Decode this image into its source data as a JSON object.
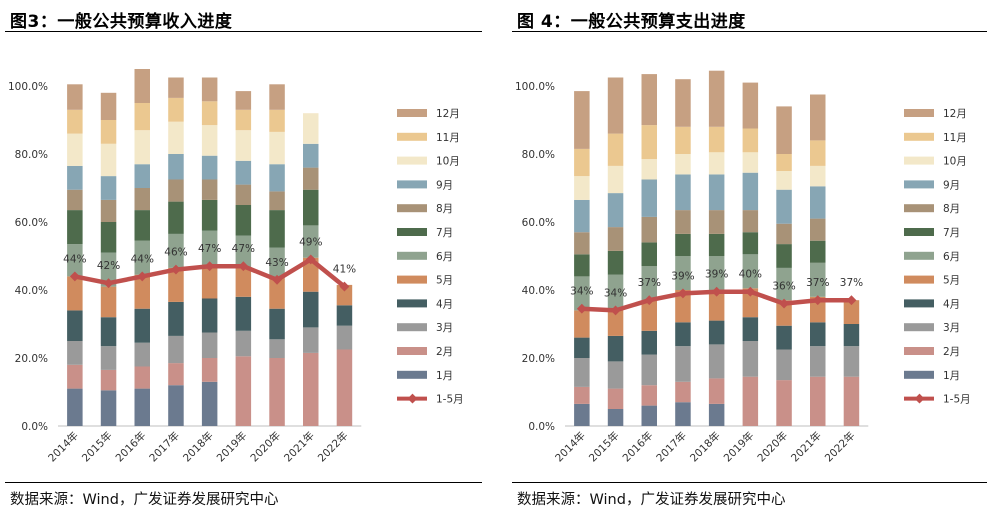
{
  "colors": {
    "m1": "#6b7a8f",
    "m2": "#c99089",
    "m3": "#9a9a9a",
    "m4": "#445e62",
    "m5": "#d08b5e",
    "m6": "#8fa38f",
    "m7": "#4e6b4c",
    "m8": "#a89277",
    "m9": "#87a6b4",
    "m10": "#f3e8c9",
    "m11": "#ebc890",
    "m12": "#c6a082",
    "line": "#c0504d"
  },
  "legend": [
    "12月",
    "11月",
    "10月",
    "9月",
    "8月",
    "7月",
    "6月",
    "5月",
    "4月",
    "3月",
    "2月",
    "1月",
    "1-5月"
  ],
  "chart_data": [
    {
      "type": "bar",
      "title": "图3：一般公共预算收入进度",
      "source": "数据来源：Wind，广发证券发展研究中心",
      "categories": [
        "2014年",
        "2015年",
        "2016年",
        "2017年",
        "2018年",
        "2019年",
        "2020年",
        "2021年",
        "2022年"
      ],
      "y_ticks": [
        "0.0%",
        "20.0%",
        "40.0%",
        "60.0%",
        "80.0%",
        "100.0%"
      ],
      "ylim": [
        0,
        100
      ],
      "stacked": true,
      "series": [
        {
          "name": "1月",
          "key": "m1",
          "values": [
            11,
            10.5,
            11,
            12,
            13,
            0,
            0,
            0,
            0
          ]
        },
        {
          "name": "2月",
          "key": "m2",
          "values": [
            7,
            6,
            6.5,
            6.5,
            7,
            20.5,
            20,
            21.5,
            22.5
          ]
        },
        {
          "name": "3月",
          "key": "m3",
          "values": [
            7,
            7,
            7,
            8,
            7.5,
            7.5,
            5.5,
            7.5,
            7
          ]
        },
        {
          "name": "4月",
          "key": "m4",
          "values": [
            9,
            8.5,
            10,
            10,
            10,
            10,
            9,
            10.5,
            6
          ]
        },
        {
          "name": "5月",
          "key": "m5",
          "values": [
            10,
            9,
            10,
            10,
            10,
            8.5,
            9,
            10,
            6
          ]
        },
        {
          "name": "6月",
          "key": "m6",
          "values": [
            9.5,
            10,
            10,
            10,
            10,
            9.5,
            9,
            9.5,
            0
          ]
        },
        {
          "name": "7月",
          "key": "m7",
          "values": [
            10,
            9,
            9,
            9.5,
            9,
            9,
            11,
            10.5,
            0
          ]
        },
        {
          "name": "8月",
          "key": "m8",
          "values": [
            6,
            6.5,
            6.5,
            6.5,
            6,
            6,
            5.5,
            6.5,
            0
          ]
        },
        {
          "name": "9月",
          "key": "m9",
          "values": [
            7,
            7,
            7,
            7.5,
            7,
            7,
            8,
            7,
            0
          ]
        },
        {
          "name": "10月",
          "key": "m10",
          "values": [
            9.5,
            9.5,
            10,
            9.5,
            9,
            9,
            9.5,
            9,
            0
          ]
        },
        {
          "name": "11月",
          "key": "m11",
          "values": [
            7,
            7,
            8,
            7,
            7,
            6,
            6.5,
            0,
            0
          ]
        },
        {
          "name": "12月",
          "key": "m12",
          "values": [
            7.5,
            8,
            10,
            6,
            7,
            5.5,
            7.5,
            0,
            0
          ]
        }
      ],
      "line": {
        "name": "1-5月",
        "values": [
          44,
          42,
          44,
          46,
          47,
          47,
          43,
          49,
          41
        ],
        "labels": [
          "44%",
          "42%",
          "44%",
          "46%",
          "47%",
          "47%",
          "43%",
          "49%",
          "41%"
        ]
      }
    },
    {
      "type": "bar",
      "title": "图 4：一般公共预算支出进度",
      "source": "数据来源：Wind，广发证券发展研究中心",
      "categories": [
        "2014年",
        "2015年",
        "2016年",
        "2017年",
        "2018年",
        "2019年",
        "2020年",
        "2021年",
        "2022年"
      ],
      "y_ticks": [
        "0.0%",
        "20.0%",
        "40.0%",
        "60.0%",
        "80.0%",
        "100.0%"
      ],
      "ylim": [
        0,
        100
      ],
      "stacked": true,
      "series": [
        {
          "name": "1月",
          "key": "m1",
          "values": [
            6.5,
            5,
            6,
            7,
            6.5,
            0,
            0,
            0,
            0
          ]
        },
        {
          "name": "2月",
          "key": "m2",
          "values": [
            5,
            6,
            6,
            6,
            7.5,
            14.5,
            13.5,
            14.5,
            14.5
          ]
        },
        {
          "name": "3月",
          "key": "m3",
          "values": [
            8.5,
            8,
            9,
            10.5,
            10,
            10.5,
            9,
            9,
            9
          ]
        },
        {
          "name": "4月",
          "key": "m4",
          "values": [
            6,
            7.5,
            7,
            7,
            7,
            7,
            7,
            7,
            6.5
          ]
        },
        {
          "name": "5月",
          "key": "m5",
          "values": [
            8,
            7.5,
            9,
            9.5,
            9,
            8.5,
            7.5,
            7.5,
            7
          ]
        },
        {
          "name": "6月",
          "key": "m6",
          "values": [
            10,
            10.5,
            10,
            10,
            10,
            10,
            9.5,
            10,
            0
          ]
        },
        {
          "name": "7月",
          "key": "m7",
          "values": [
            6.5,
            7,
            7,
            6.5,
            6.5,
            6.5,
            7,
            6.5,
            0
          ]
        },
        {
          "name": "8月",
          "key": "m8",
          "values": [
            6.5,
            7,
            7.5,
            7,
            7,
            6.5,
            6,
            6.5,
            0
          ]
        },
        {
          "name": "9月",
          "key": "m9",
          "values": [
            9.5,
            10,
            11,
            10.5,
            10.5,
            11,
            10,
            9.5,
            0
          ]
        },
        {
          "name": "10月",
          "key": "m10",
          "values": [
            7,
            8,
            6,
            6,
            6.5,
            6,
            5.5,
            6,
            0
          ]
        },
        {
          "name": "11月",
          "key": "m11",
          "values": [
            8,
            9.5,
            10,
            8,
            7.5,
            7,
            5,
            7.5,
            0
          ]
        },
        {
          "name": "12月",
          "key": "m12",
          "values": [
            17,
            16.5,
            15,
            14,
            16.5,
            13.5,
            14,
            13.5,
            0
          ]
        }
      ],
      "line": {
        "name": "1-5月",
        "values": [
          34.5,
          34,
          37,
          39,
          39.5,
          39.5,
          36,
          37,
          37
        ],
        "labels": [
          "34%",
          "34%",
          "37%",
          "39%",
          "39%",
          "40%",
          "36%",
          "37%",
          "37%"
        ]
      }
    }
  ]
}
